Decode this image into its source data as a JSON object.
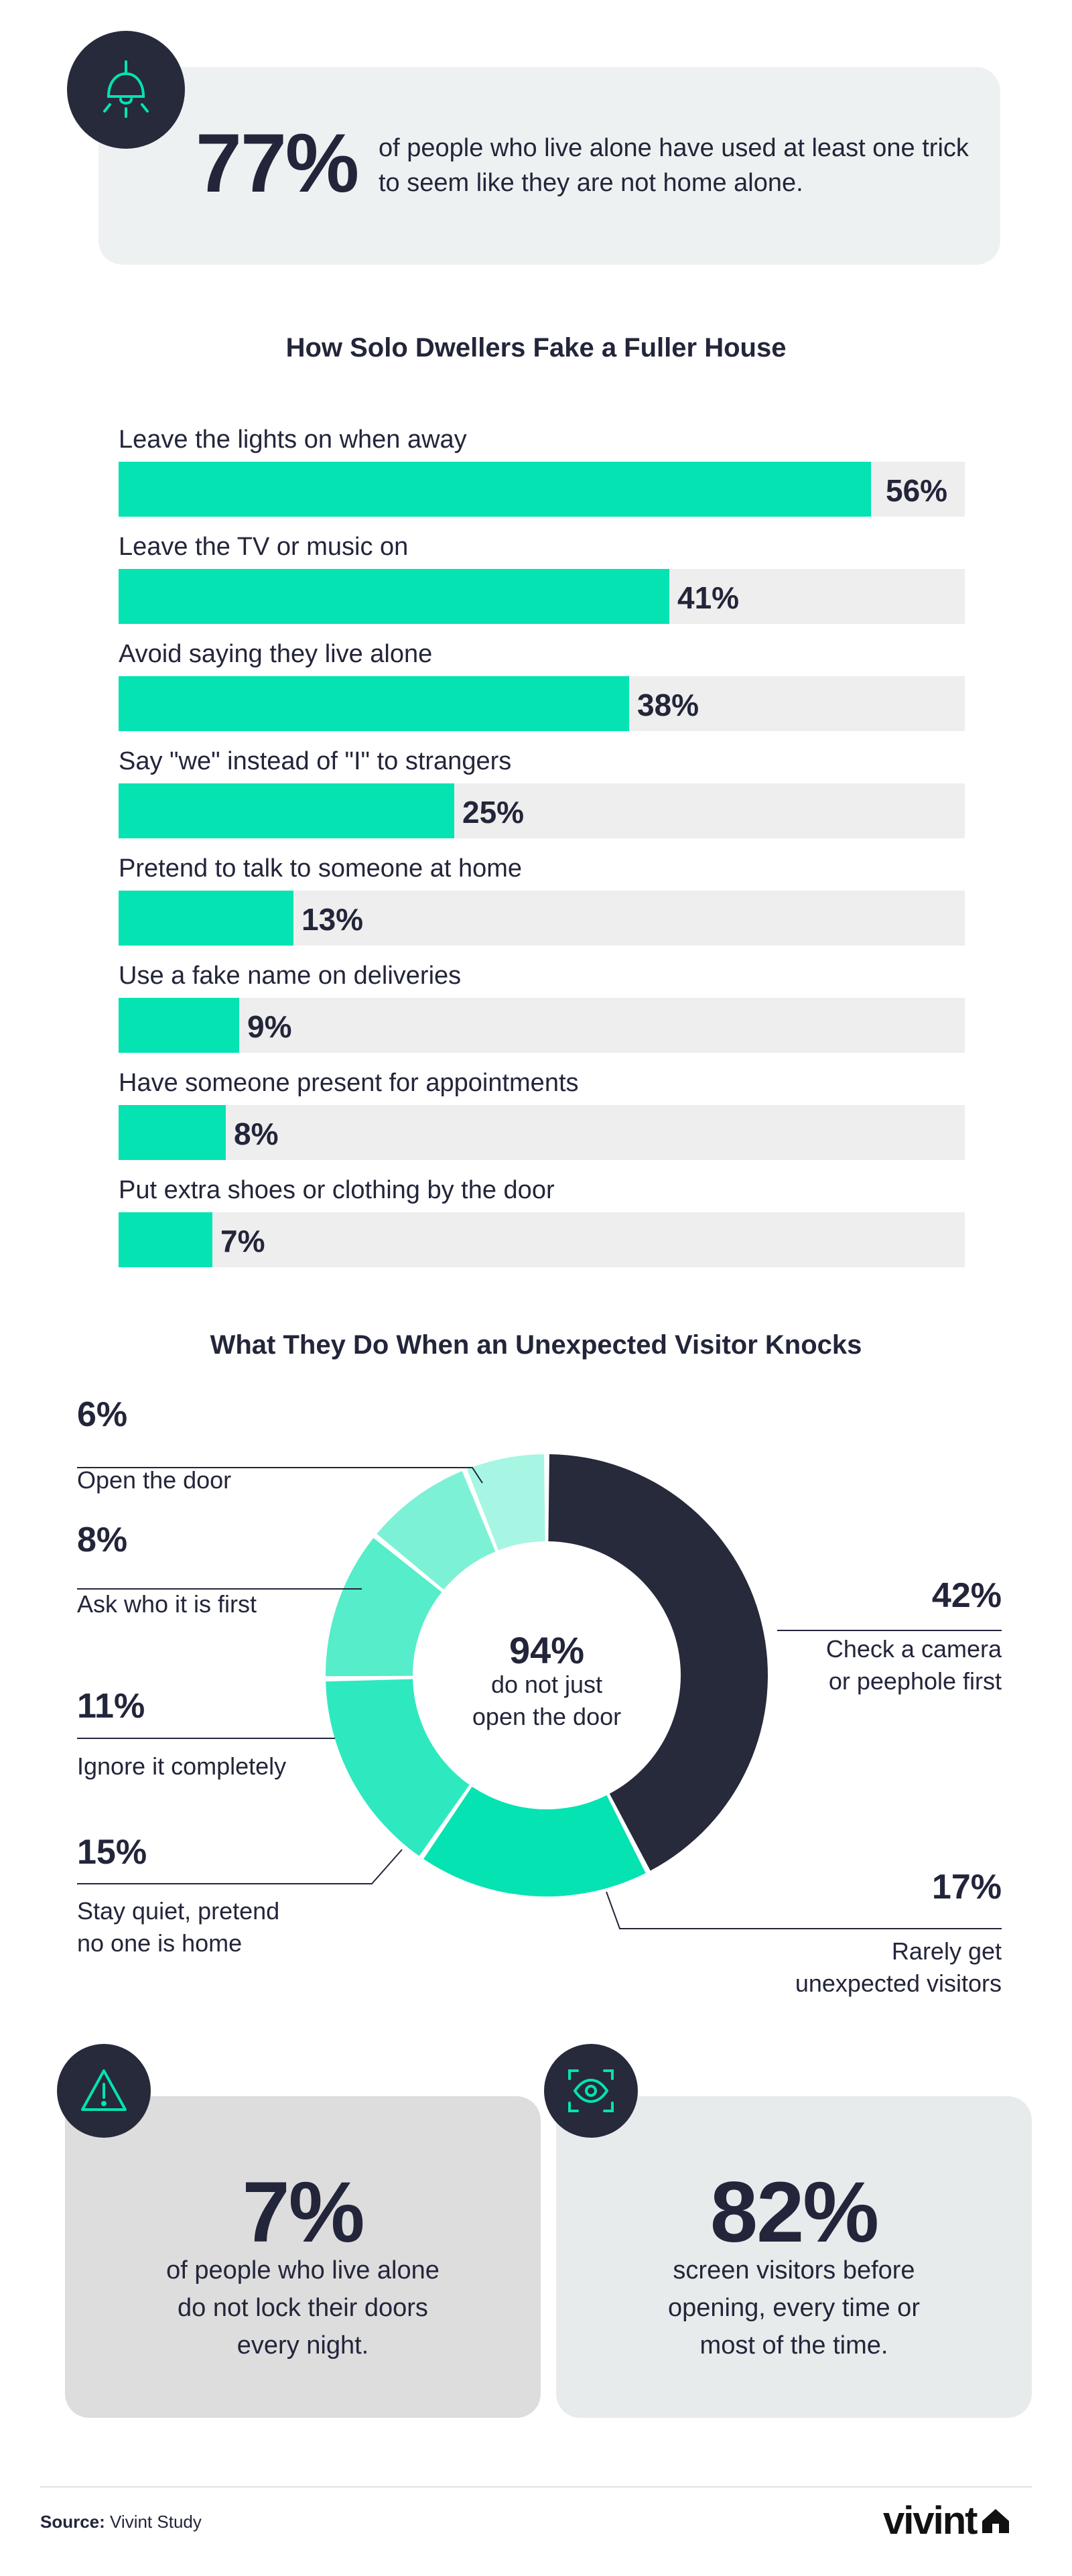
{
  "header_card": {
    "stat": "77%",
    "text": "of people who live alone have used at least one trick to seem like they are not home alone.",
    "icon": "lamp-icon"
  },
  "bar_section": {
    "title": "How Solo Dwellers Fake a Fuller House"
  },
  "donut_section": {
    "title": "What They Do When an Unexpected Visitor Knocks",
    "center_pct": "94%",
    "center_text_line1": "do not just",
    "center_text_line2": "open the door"
  },
  "cards": {
    "left": {
      "stat": "7%",
      "line1": "of people who live alone",
      "line2": "do not lock their doors",
      "line3": "every night.",
      "icon": "warning-icon"
    },
    "right": {
      "stat": "82%",
      "line1": "screen visitors before",
      "line2": "opening, every time or",
      "line3": "most of the time.",
      "icon": "eye-scan-icon"
    }
  },
  "footer": {
    "source_label": "Source:",
    "source_value": "Vivint Study",
    "logo_text": "vivint"
  },
  "colors": {
    "accent": "#05e3b2",
    "dark": "#262a3b",
    "track": "#eeeeee"
  },
  "chart_data": [
    {
      "type": "bar",
      "title": "How Solo Dwellers Fake a Fuller House",
      "orientation": "horizontal",
      "categories": [
        "Leave the lights on when away",
        "Leave the TV or music on",
        "Avoid saying they live alone",
        "Say \"we\" instead of \"I\" to strangers",
        "Pretend to talk to someone at home",
        "Use a fake name on deliveries",
        "Have someone present for appointments",
        "Put extra shoes or clothing by the door"
      ],
      "values": [
        56,
        41,
        38,
        25,
        13,
        9,
        8,
        7
      ],
      "value_labels": [
        "56%",
        "41%",
        "38%",
        "25%",
        "13%",
        "9%",
        "8%",
        "7%"
      ],
      "ylim": [
        0,
        63
      ]
    },
    {
      "type": "pie",
      "title": "What They Do When an Unexpected Visitor Knocks",
      "donut": true,
      "slices": [
        {
          "pct_label": "42%",
          "value": 42,
          "label_line1": "Check a camera",
          "label_line2": "or peephole first",
          "color": "#262a3b"
        },
        {
          "pct_label": "17%",
          "value": 17,
          "label_line1": "Rarely get",
          "label_line2": "unexpected visitors",
          "color": "#05e3b2"
        },
        {
          "pct_label": "15%",
          "value": 15,
          "label_line1": "Stay quiet, pretend",
          "label_line2": "no one is home",
          "color": "#2ee9bf"
        },
        {
          "pct_label": "11%",
          "value": 11,
          "label_line1": "Ignore it completely",
          "label_line2": "",
          "color": "#55edca"
        },
        {
          "pct_label": "8%",
          "value": 8,
          "label_line1": "Ask who it is first",
          "label_line2": "",
          "color": "#7df1d6"
        },
        {
          "pct_label": "6%",
          "value": 6,
          "label_line1": "Open the door",
          "label_line2": "",
          "color": "#a6f6e3"
        }
      ]
    }
  ]
}
